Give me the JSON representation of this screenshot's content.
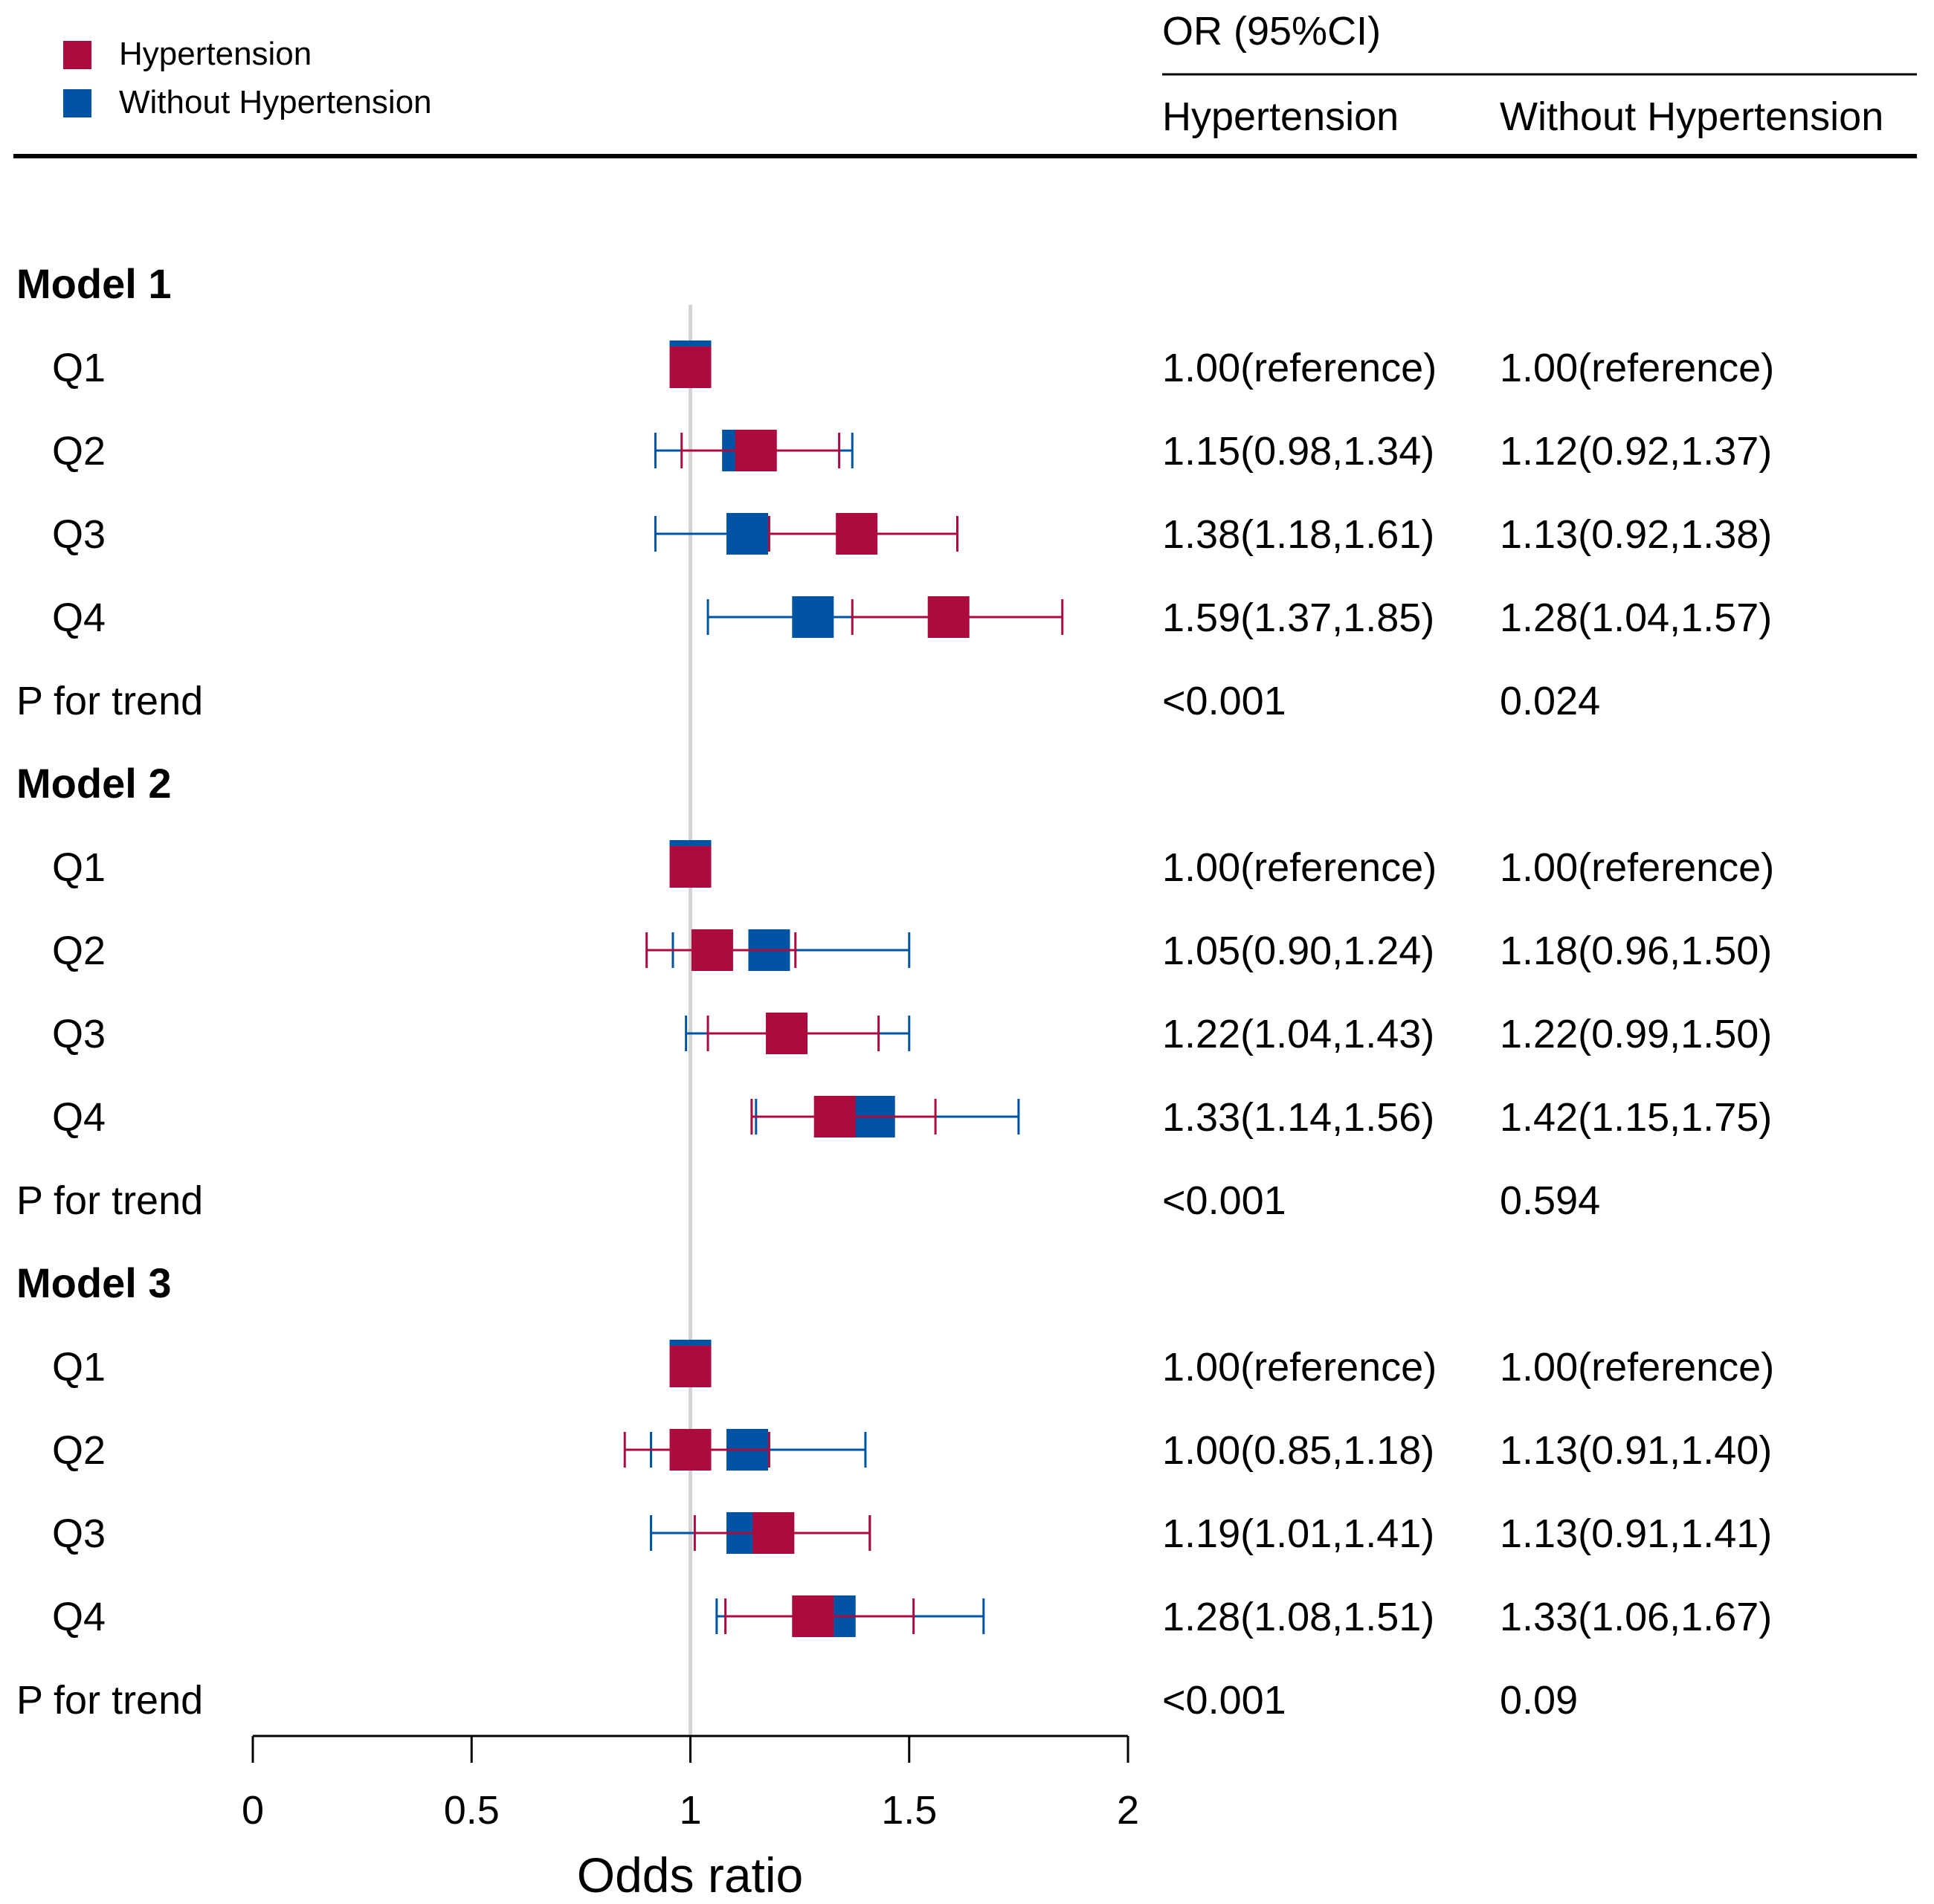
{
  "legend": {
    "items": [
      {
        "label": "Hypertension",
        "color": "#ac0b3e"
      },
      {
        "label": "Without Hypertension",
        "color": "#0054a3"
      }
    ]
  },
  "table_header": {
    "group_label": "OR (95%CI)",
    "col_hypertension": "Hypertension",
    "col_without": "Without Hypertension"
  },
  "colors": {
    "hypertension": "#ac0b3e",
    "without_hypertension": "#0054a3",
    "reference_line": "#d4d4d4",
    "axis": "#000000"
  },
  "chart_data": {
    "type": "forest",
    "xlabel": "Odds ratio",
    "xlim": [
      0,
      2
    ],
    "xticks": [
      0,
      0.5,
      1,
      1.5,
      2
    ],
    "xtick_labels": [
      "0",
      "0.5",
      "1",
      "1.5",
      "2"
    ],
    "reference_value": 1,
    "series": [
      {
        "key": "without",
        "name": "Without Hypertension",
        "color": "#0054a3"
      },
      {
        "key": "hyp",
        "name": "Hypertension",
        "color": "#ac0b3e"
      }
    ],
    "models": [
      {
        "title": "Model 1",
        "rows": [
          {
            "label": "Q1",
            "hyp": {
              "or": 1.0,
              "lo": null,
              "hi": null,
              "text": "1.00(reference)"
            },
            "without": {
              "or": 1.0,
              "lo": null,
              "hi": null,
              "text": "1.00(reference)"
            }
          },
          {
            "label": "Q2",
            "hyp": {
              "or": 1.15,
              "lo": 0.98,
              "hi": 1.34,
              "text": "1.15(0.98,1.34)"
            },
            "without": {
              "or": 1.12,
              "lo": 0.92,
              "hi": 1.37,
              "text": "1.12(0.92,1.37)"
            }
          },
          {
            "label": "Q3",
            "hyp": {
              "or": 1.38,
              "lo": 1.18,
              "hi": 1.61,
              "text": "1.38(1.18,1.61)"
            },
            "without": {
              "or": 1.13,
              "lo": 0.92,
              "hi": 1.38,
              "text": "1.13(0.92,1.38)"
            }
          },
          {
            "label": "Q4",
            "hyp": {
              "or": 1.59,
              "lo": 1.37,
              "hi": 1.85,
              "text": "1.59(1.37,1.85)"
            },
            "without": {
              "or": 1.28,
              "lo": 1.04,
              "hi": 1.57,
              "text": "1.28(1.04,1.57)"
            }
          }
        ],
        "trend": {
          "label": "P for trend",
          "hyp": "<0.001",
          "without": "0.024"
        }
      },
      {
        "title": "Model 2",
        "rows": [
          {
            "label": "Q1",
            "hyp": {
              "or": 1.0,
              "lo": null,
              "hi": null,
              "text": "1.00(reference)"
            },
            "without": {
              "or": 1.0,
              "lo": null,
              "hi": null,
              "text": "1.00(reference)"
            }
          },
          {
            "label": "Q2",
            "hyp": {
              "or": 1.05,
              "lo": 0.9,
              "hi": 1.24,
              "text": "1.05(0.90,1.24)"
            },
            "without": {
              "or": 1.18,
              "lo": 0.96,
              "hi": 1.5,
              "text": "1.18(0.96,1.50)"
            }
          },
          {
            "label": "Q3",
            "hyp": {
              "or": 1.22,
              "lo": 1.04,
              "hi": 1.43,
              "text": "1.22(1.04,1.43)"
            },
            "without": {
              "or": 1.22,
              "lo": 0.99,
              "hi": 1.5,
              "text": "1.22(0.99,1.50)"
            }
          },
          {
            "label": "Q4",
            "hyp": {
              "or": 1.33,
              "lo": 1.14,
              "hi": 1.56,
              "text": "1.33(1.14,1.56)"
            },
            "without": {
              "or": 1.42,
              "lo": 1.15,
              "hi": 1.75,
              "text": "1.42(1.15,1.75)"
            }
          }
        ],
        "trend": {
          "label": "P for trend",
          "hyp": "<0.001",
          "without": "0.594"
        }
      },
      {
        "title": "Model 3",
        "rows": [
          {
            "label": "Q1",
            "hyp": {
              "or": 1.0,
              "lo": null,
              "hi": null,
              "text": "1.00(reference)"
            },
            "without": {
              "or": 1.0,
              "lo": null,
              "hi": null,
              "text": "1.00(reference)"
            }
          },
          {
            "label": "Q2",
            "hyp": {
              "or": 1.0,
              "lo": 0.85,
              "hi": 1.18,
              "text": "1.00(0.85,1.18)"
            },
            "without": {
              "or": 1.13,
              "lo": 0.91,
              "hi": 1.4,
              "text": "1.13(0.91,1.40)"
            }
          },
          {
            "label": "Q3",
            "hyp": {
              "or": 1.19,
              "lo": 1.01,
              "hi": 1.41,
              "text": "1.19(1.01,1.41)"
            },
            "without": {
              "or": 1.13,
              "lo": 0.91,
              "hi": 1.41,
              "text": "1.13(0.91,1.41)"
            }
          },
          {
            "label": "Q4",
            "hyp": {
              "or": 1.28,
              "lo": 1.08,
              "hi": 1.51,
              "text": "1.28(1.08,1.51)"
            },
            "without": {
              "or": 1.33,
              "lo": 1.06,
              "hi": 1.67,
              "text": "1.33(1.06,1.67)"
            }
          }
        ],
        "trend": {
          "label": "P for trend",
          "hyp": "<0.001",
          "without": "0.09"
        }
      }
    ]
  }
}
